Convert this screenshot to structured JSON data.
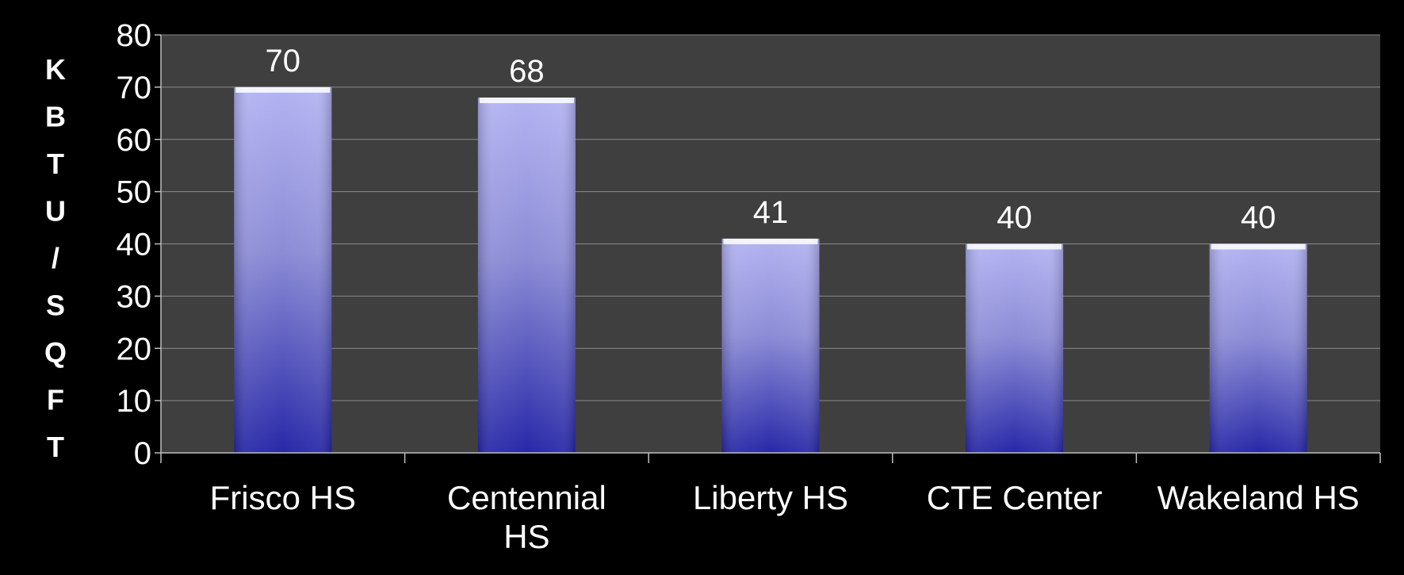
{
  "chart_data": {
    "type": "bar",
    "categories": [
      "Frisco HS",
      "Centennial HS",
      "Liberty HS",
      "CTE Center",
      "Wakeland HS"
    ],
    "category_lines": [
      [
        "Frisco HS"
      ],
      [
        "Centennial",
        "HS"
      ],
      [
        "Liberty HS"
      ],
      [
        "CTE Center"
      ],
      [
        "Wakeland HS"
      ]
    ],
    "values": [
      70,
      68,
      41,
      40,
      40
    ],
    "data_labels": [
      "70",
      "68",
      "41",
      "40",
      "40"
    ],
    "ylabel": "KBTU/SQFT",
    "ylim": [
      0,
      80
    ],
    "yticks": [
      0,
      10,
      20,
      30,
      40,
      50,
      60,
      70,
      80
    ],
    "grid": true,
    "legend": "none"
  },
  "colors": {
    "background": "#000000",
    "plot_area": "#3f3f3f",
    "gridline": "#8a8a8a",
    "axis": "#bfbfbf",
    "bar_top": "#b3b3f2",
    "bar_mid": "#8686cc",
    "bar_bottom": "#2828a8",
    "text": "#ffffff"
  }
}
